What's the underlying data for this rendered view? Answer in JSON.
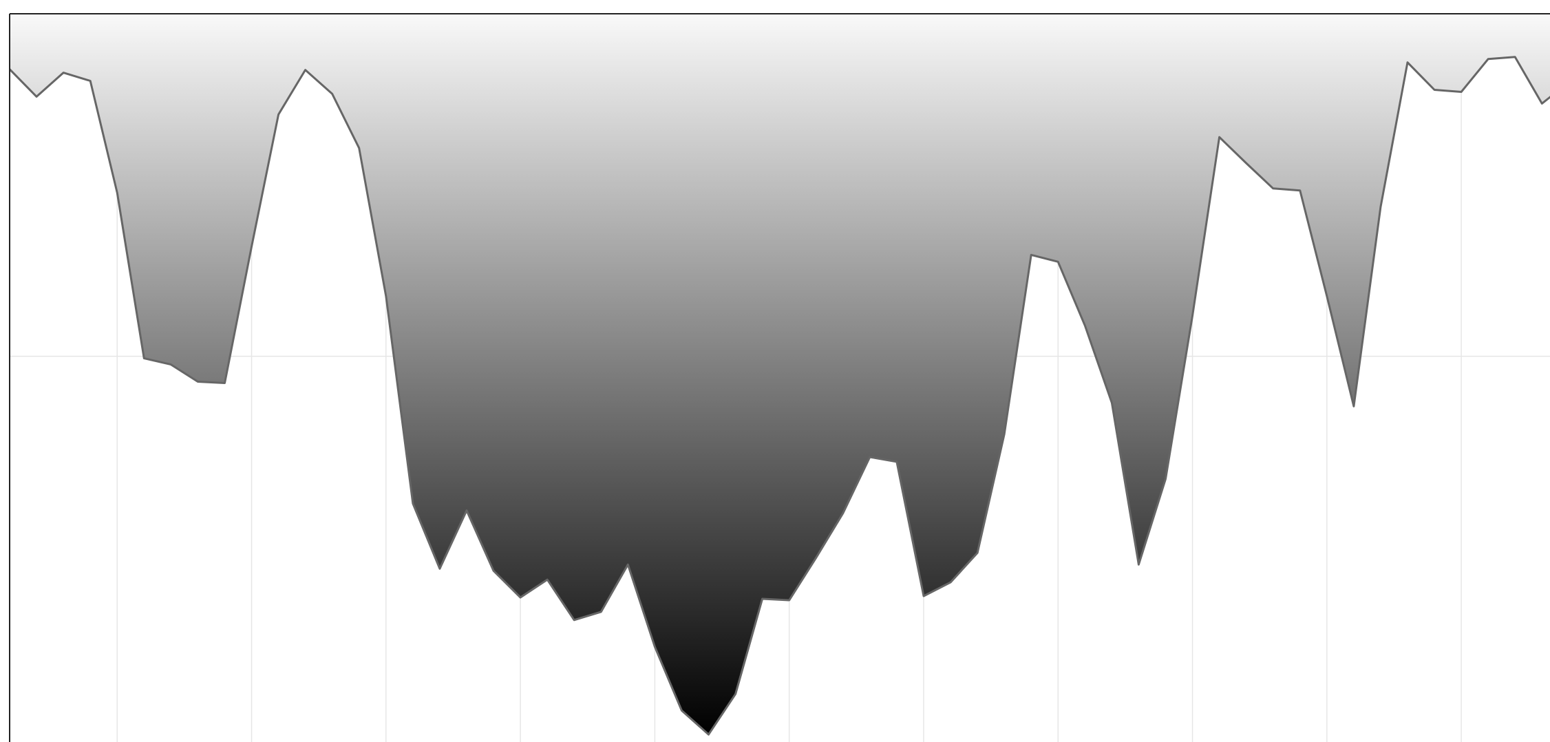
{
  "chart_data": {
    "type": "area",
    "fill_direction": "top",
    "x": [
      0,
      1,
      2,
      3,
      4,
      5,
      6,
      7,
      8,
      9,
      10,
      11,
      12,
      13,
      14,
      15,
      16,
      17,
      18,
      19,
      20,
      21,
      22,
      23,
      24,
      25,
      26,
      27,
      28,
      29,
      30,
      31,
      32,
      33,
      34,
      35,
      36,
      37,
      38,
      39,
      40,
      41,
      42,
      43,
      44,
      45,
      46,
      47,
      48,
      49,
      50,
      51,
      52,
      53,
      54,
      55,
      56,
      57,
      58
    ],
    "series": [
      {
        "color": "#666666",
        "gradient": [
          "#f9f9f9",
          "#000000"
        ],
        "values": [
          91.9,
          87.9,
          91.4,
          90.2,
          73.9,
          49.7,
          48.8,
          46.3,
          46.1,
          66,
          85.3,
          91.8,
          88.3,
          80.4,
          58.8,
          28.5,
          19,
          27.5,
          18.7,
          14.8,
          17.4,
          11.5,
          12.7,
          19.6,
          7.6,
          -1.7,
          -5.2,
          0.7,
          14.6,
          14.4,
          20.6,
          27.1,
          35.3,
          34.6,
          15,
          17,
          21.3,
          38.6,
          64.8,
          63.8,
          54.5,
          43.2,
          19.6,
          32.1,
          55.9,
          82,
          78.2,
          74.5,
          74.2,
          58.8,
          42.7,
          71.8,
          92.9,
          88.9,
          88.6,
          93.4,
          93.7,
          86.9,
          90
        ]
      }
    ],
    "xlim": [
      0,
      57.3
    ],
    "xticks": [
      4,
      9,
      14,
      19,
      24,
      29,
      34,
      39,
      44,
      49,
      54
    ],
    "ylim": [
      -6.3,
      100
    ],
    "yticks": [
      50
    ],
    "grid": true
  }
}
